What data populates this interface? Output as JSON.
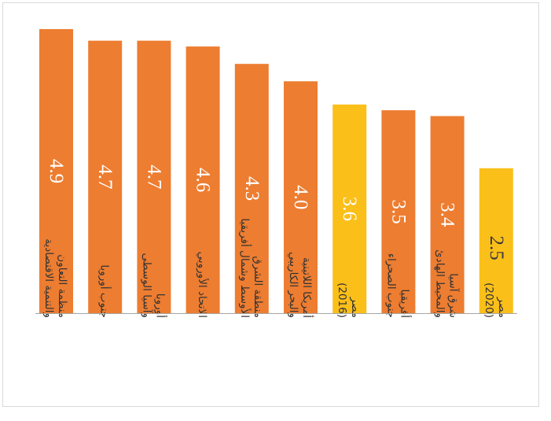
{
  "chart_data": {
    "type": "bar",
    "title": "",
    "xlabel": "",
    "ylabel": "",
    "ylim": [
      0,
      5.0
    ],
    "grid": false,
    "legend": "none",
    "categories": [
      [
        "منظمة التعاون",
        "والتنمية الاقتصادية"
      ],
      [
        "جنوب أوروبا"
      ],
      [
        "أوروبا",
        "وآسيا الوسطى"
      ],
      [
        "الاتحاد الأوروبي"
      ],
      [
        "منطقة الشرق",
        "الأوسط وشمال أفريقيا"
      ],
      [
        "أمريكا اللاتينية",
        "والبحر الكاريبي"
      ],
      [
        "مصر",
        "(2016)"
      ],
      [
        "أفريقيا",
        "جنوب الصحراء"
      ],
      [
        "شرق آسيا",
        "والمحيط الهادئ"
      ],
      [
        "مصر",
        "(2020)"
      ]
    ],
    "values": [
      4.9,
      4.7,
      4.7,
      4.6,
      4.3,
      4.0,
      3.6,
      3.5,
      3.4,
      2.5
    ],
    "labels": [
      "4.9",
      "4.7",
      "4.7",
      "4.6",
      "4.3",
      "4.0",
      "3.6",
      "3.5",
      "3.4",
      "2.5"
    ],
    "highlight": [
      false,
      false,
      false,
      false,
      false,
      false,
      true,
      false,
      false,
      true
    ],
    "colors": {
      "default": "#ED7D31",
      "highlight": "#FBBF1A",
      "axis": "#a6a6a6"
    }
  }
}
